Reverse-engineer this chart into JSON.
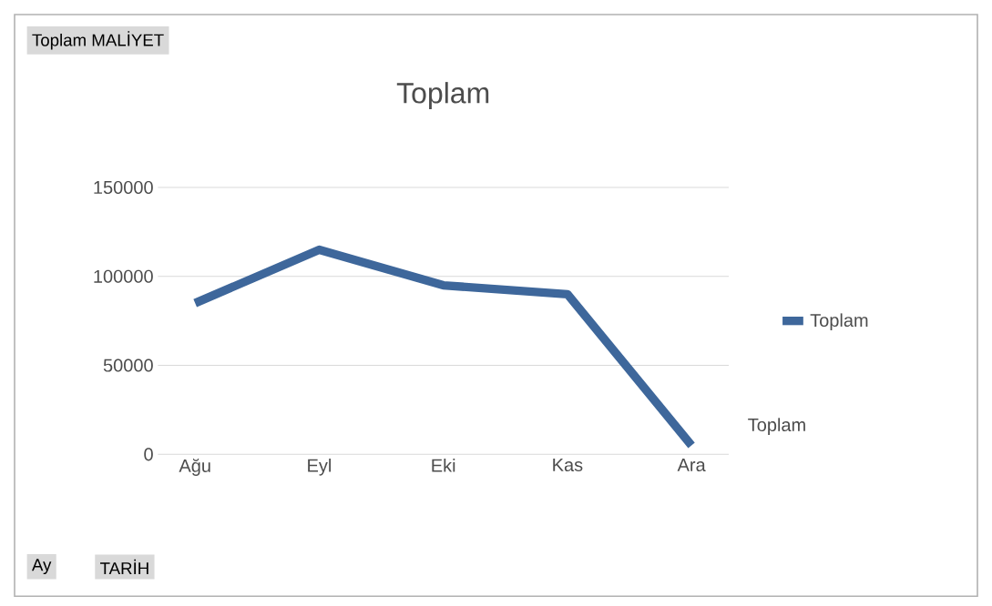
{
  "chart_data": {
    "type": "line",
    "title": "Toplam",
    "categories": [
      "Ağu",
      "Eyl",
      "Eki",
      "Kas",
      "Ara"
    ],
    "series": [
      {
        "name": "Toplam",
        "color": "#3e679b",
        "values": [
          85000,
          115000,
          95000,
          90000,
          5000
        ]
      }
    ],
    "ylim": [
      0,
      150000
    ],
    "yticks": [
      0,
      50000,
      100000,
      150000
    ],
    "grid": "y",
    "legend": "right",
    "marker": "none",
    "line_style": "solid",
    "annotations": [
      "Toplam MALİYET",
      "Ay",
      "TARİH",
      "Toplam"
    ]
  }
}
